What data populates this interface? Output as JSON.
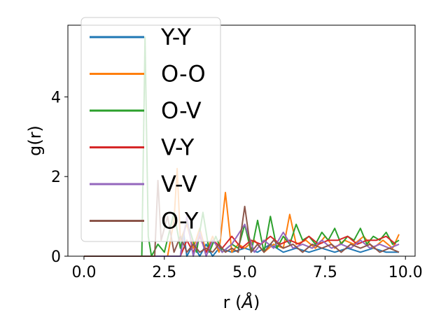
{
  "chart_data": {
    "type": "line",
    "xlabel": "r (",
    "xlabel_unit": "Å",
    "xlabel_close": ")",
    "ylabel": "g(r)",
    "xlim": [
      -0.5,
      10.3
    ],
    "ylim": [
      0,
      5.8
    ],
    "xticks": [
      0.0,
      2.5,
      5.0,
      7.5,
      10.0
    ],
    "xtick_labels": [
      "0.0",
      "2.5",
      "5.0",
      "7.5",
      "10.0"
    ],
    "yticks": [
      0,
      2,
      4
    ],
    "ytick_labels": [
      "0",
      "2",
      "4"
    ],
    "grid": false,
    "legend_position": "upper-left",
    "series": [
      {
        "name": "Y-Y",
        "color": "#1f77b4",
        "x": [
          0,
          3.0,
          3.1,
          3.2,
          3.4,
          3.6,
          3.8,
          4.0,
          4.2,
          4.6,
          5.0,
          5.4,
          5.8,
          6.2,
          6.6,
          7.0,
          7.4,
          7.8,
          8.2,
          8.6,
          9.0,
          9.4,
          9.8
        ],
        "y": [
          0,
          0,
          0.6,
          0,
          0.3,
          0,
          0.3,
          0,
          0.2,
          0.1,
          0.2,
          0.1,
          0.3,
          0.1,
          0.2,
          0.1,
          0.2,
          0.1,
          0.2,
          0.1,
          0.2,
          0.1,
          0.1
        ]
      },
      {
        "name": "O-O",
        "color": "#ff7f0e",
        "x": [
          0,
          2.6,
          2.8,
          2.9,
          3.0,
          3.2,
          3.4,
          3.6,
          3.8,
          4.0,
          4.2,
          4.4,
          4.6,
          4.8,
          5.0,
          5.3,
          5.6,
          5.9,
          6.2,
          6.4,
          6.6,
          6.9,
          7.2,
          7.5,
          7.8,
          8.1,
          8.4,
          8.7,
          9.0,
          9.3,
          9.6,
          9.8
        ],
        "y": [
          0,
          0,
          0.9,
          2.2,
          0.4,
          0.8,
          0.2,
          0.7,
          0.1,
          0.5,
          0.1,
          1.6,
          0.1,
          0.3,
          0.2,
          0.4,
          0.1,
          0.3,
          0.2,
          1.05,
          0.3,
          0.4,
          0.2,
          0.5,
          0.2,
          0.4,
          0.3,
          0.5,
          0.2,
          0.4,
          0.2,
          0.55
        ]
      },
      {
        "name": "O-V",
        "color": "#2ca02c",
        "x": [
          0,
          1.8,
          1.9,
          2.0,
          2.1,
          2.3,
          2.5,
          2.8,
          3.0,
          3.2,
          3.5,
          3.7,
          3.9,
          4.1,
          4.3,
          4.6,
          4.8,
          5.0,
          5.2,
          5.4,
          5.6,
          5.8,
          6.0,
          6.2,
          6.4,
          6.6,
          6.8,
          7.0,
          7.2,
          7.4,
          7.6,
          7.8,
          8.0,
          8.2,
          8.4,
          8.6,
          8.8,
          9.0,
          9.2,
          9.4,
          9.6,
          9.8
        ],
        "y": [
          0,
          0,
          5.5,
          0.5,
          0,
          0.3,
          0.1,
          1.1,
          0.2,
          0.9,
          0.1,
          1.1,
          0.1,
          0.5,
          0.1,
          0.3,
          0.2,
          0.8,
          0.1,
          0.9,
          0.1,
          1.0,
          0.2,
          0.5,
          0.3,
          0.8,
          0.4,
          0.5,
          0.3,
          0.6,
          0.4,
          0.7,
          0.3,
          0.5,
          0.4,
          0.7,
          0.3,
          0.5,
          0.4,
          0.6,
          0.3,
          0.4
        ]
      },
      {
        "name": "V-Y",
        "color": "#d62728",
        "x": [
          0,
          3.0,
          3.2,
          3.4,
          3.6,
          3.8,
          4.0,
          4.3,
          4.6,
          4.9,
          5.2,
          5.5,
          5.8,
          6.1,
          6.4,
          6.7,
          7.0,
          7.3,
          7.6,
          7.9,
          8.2,
          8.5,
          8.8,
          9.1,
          9.4,
          9.7
        ],
        "y": [
          0,
          0,
          0.4,
          0.1,
          0.5,
          0.1,
          0.4,
          0.2,
          0.5,
          0.2,
          0.4,
          0.3,
          0.5,
          0.3,
          0.4,
          0.3,
          0.5,
          0.3,
          0.4,
          0.4,
          0.5,
          0.3,
          0.4,
          0.4,
          0.5,
          0.3
        ]
      },
      {
        "name": "V-V",
        "color": "#9467bd",
        "x": [
          0,
          3.0,
          3.2,
          3.4,
          3.6,
          3.8,
          4.0,
          4.3,
          4.6,
          5.0,
          5.3,
          5.6,
          5.9,
          6.2,
          6.5,
          6.8,
          7.1,
          7.4,
          7.7,
          8.0,
          8.3,
          8.6,
          8.9,
          9.2,
          9.5,
          9.8
        ],
        "y": [
          0,
          0,
          1.0,
          0,
          0.6,
          0,
          0.4,
          0.1,
          0.3,
          0.8,
          0.1,
          0.4,
          0.2,
          0.6,
          0.2,
          0.3,
          0.2,
          0.4,
          0.2,
          0.3,
          0.2,
          0.4,
          0.2,
          0.3,
          0.2,
          0.3
        ]
      },
      {
        "name": "O-Y",
        "color": "#8c564b",
        "x": [
          0,
          2.2,
          2.3,
          2.4,
          2.6,
          2.8,
          3.0,
          3.2,
          3.4,
          3.6,
          3.8,
          4.0,
          4.2,
          4.4,
          4.6,
          4.8,
          5.0,
          5.2,
          5.4,
          5.6,
          5.9,
          6.2,
          6.5,
          6.8,
          7.1,
          7.4,
          7.7,
          8.0,
          8.3,
          8.6,
          8.9,
          9.2,
          9.5,
          9.8
        ],
        "y": [
          0,
          0,
          1.9,
          0.4,
          1.0,
          0.1,
          0.5,
          0.1,
          0.3,
          0.1,
          0.2,
          0.1,
          0.3,
          0.1,
          0.2,
          0.1,
          1.25,
          0.1,
          0.3,
          0.1,
          0.4,
          0.2,
          0.3,
          0.1,
          0.3,
          0.2,
          0.3,
          0.1,
          0.3,
          0.2,
          0.3,
          0.1,
          0.2,
          0.1
        ]
      }
    ]
  }
}
